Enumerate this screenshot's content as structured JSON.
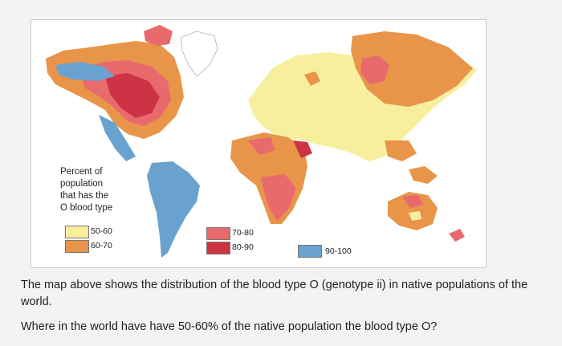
{
  "legend": {
    "title_lines": [
      "Percent of",
      "population",
      "that has the",
      "O blood type"
    ],
    "items": [
      {
        "label": "50-60",
        "color": "#f7ef9e"
      },
      {
        "label": "60-70",
        "color": "#e8954a"
      },
      {
        "label": "70-80",
        "color": "#e86a6c"
      },
      {
        "label": "80-90",
        "color": "#cc3344"
      },
      {
        "label": "90-100",
        "color": "#6aa2cf"
      }
    ]
  },
  "caption": {
    "text": "The map above shows the distribution of the blood type O (genotype ii) in native populations of the world.",
    "question": "Where in the world have have 50-60% of the native population the blood type O?"
  }
}
